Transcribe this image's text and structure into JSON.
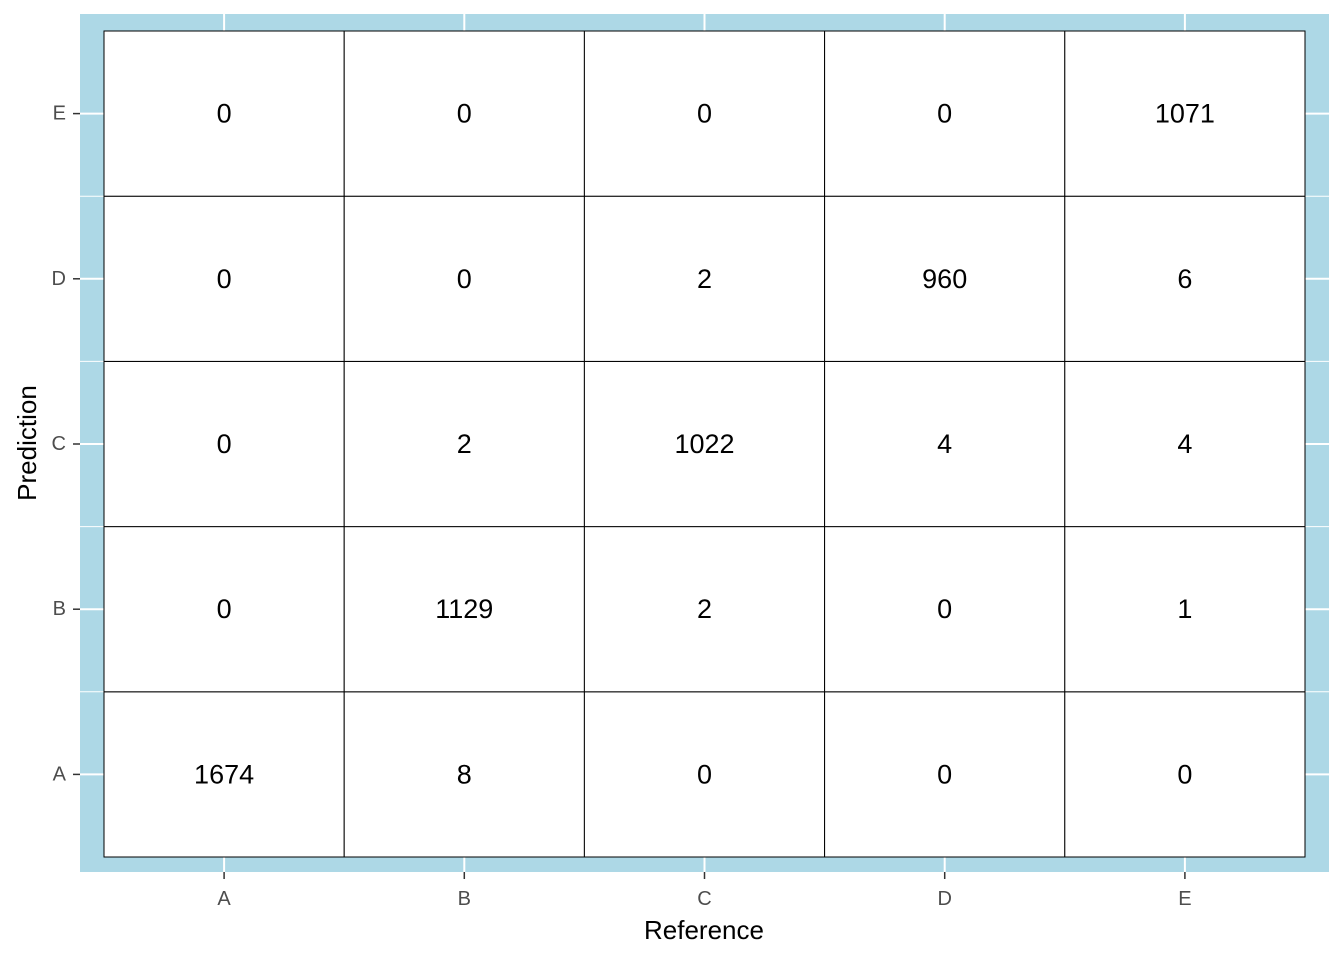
{
  "chart_data": {
    "type": "heatmap",
    "title": "",
    "xlabel": "Reference",
    "ylabel": "Prediction",
    "x_categories": [
      "A",
      "B",
      "C",
      "D",
      "E"
    ],
    "y_categories": [
      "A",
      "B",
      "C",
      "D",
      "E"
    ],
    "cells": [
      {
        "x": "A",
        "y": "A",
        "value": 1674
      },
      {
        "x": "B",
        "y": "A",
        "value": 8
      },
      {
        "x": "C",
        "y": "A",
        "value": 0
      },
      {
        "x": "D",
        "y": "A",
        "value": 0
      },
      {
        "x": "E",
        "y": "A",
        "value": 0
      },
      {
        "x": "A",
        "y": "B",
        "value": 0
      },
      {
        "x": "B",
        "y": "B",
        "value": 1129
      },
      {
        "x": "C",
        "y": "B",
        "value": 2
      },
      {
        "x": "D",
        "y": "B",
        "value": 0
      },
      {
        "x": "E",
        "y": "B",
        "value": 1
      },
      {
        "x": "A",
        "y": "C",
        "value": 0
      },
      {
        "x": "B",
        "y": "C",
        "value": 2
      },
      {
        "x": "C",
        "y": "C",
        "value": 1022
      },
      {
        "x": "D",
        "y": "C",
        "value": 4
      },
      {
        "x": "E",
        "y": "C",
        "value": 4
      },
      {
        "x": "A",
        "y": "D",
        "value": 0
      },
      {
        "x": "B",
        "y": "D",
        "value": 0
      },
      {
        "x": "C",
        "y": "D",
        "value": 2
      },
      {
        "x": "D",
        "y": "D",
        "value": 960
      },
      {
        "x": "E",
        "y": "D",
        "value": 6
      },
      {
        "x": "A",
        "y": "E",
        "value": 0
      },
      {
        "x": "B",
        "y": "E",
        "value": 0
      },
      {
        "x": "C",
        "y": "E",
        "value": 0
      },
      {
        "x": "D",
        "y": "E",
        "value": 0
      },
      {
        "x": "E",
        "y": "E",
        "value": 1071
      }
    ],
    "grid": true,
    "legend": "none",
    "colors": {
      "panel_background": "#add8e6",
      "cell_fill": "#ffffff",
      "cell_border": "#000000",
      "grid_line": "#ffffff",
      "tick_text": "#4d4d4d",
      "tick_mark": "#333333"
    }
  }
}
